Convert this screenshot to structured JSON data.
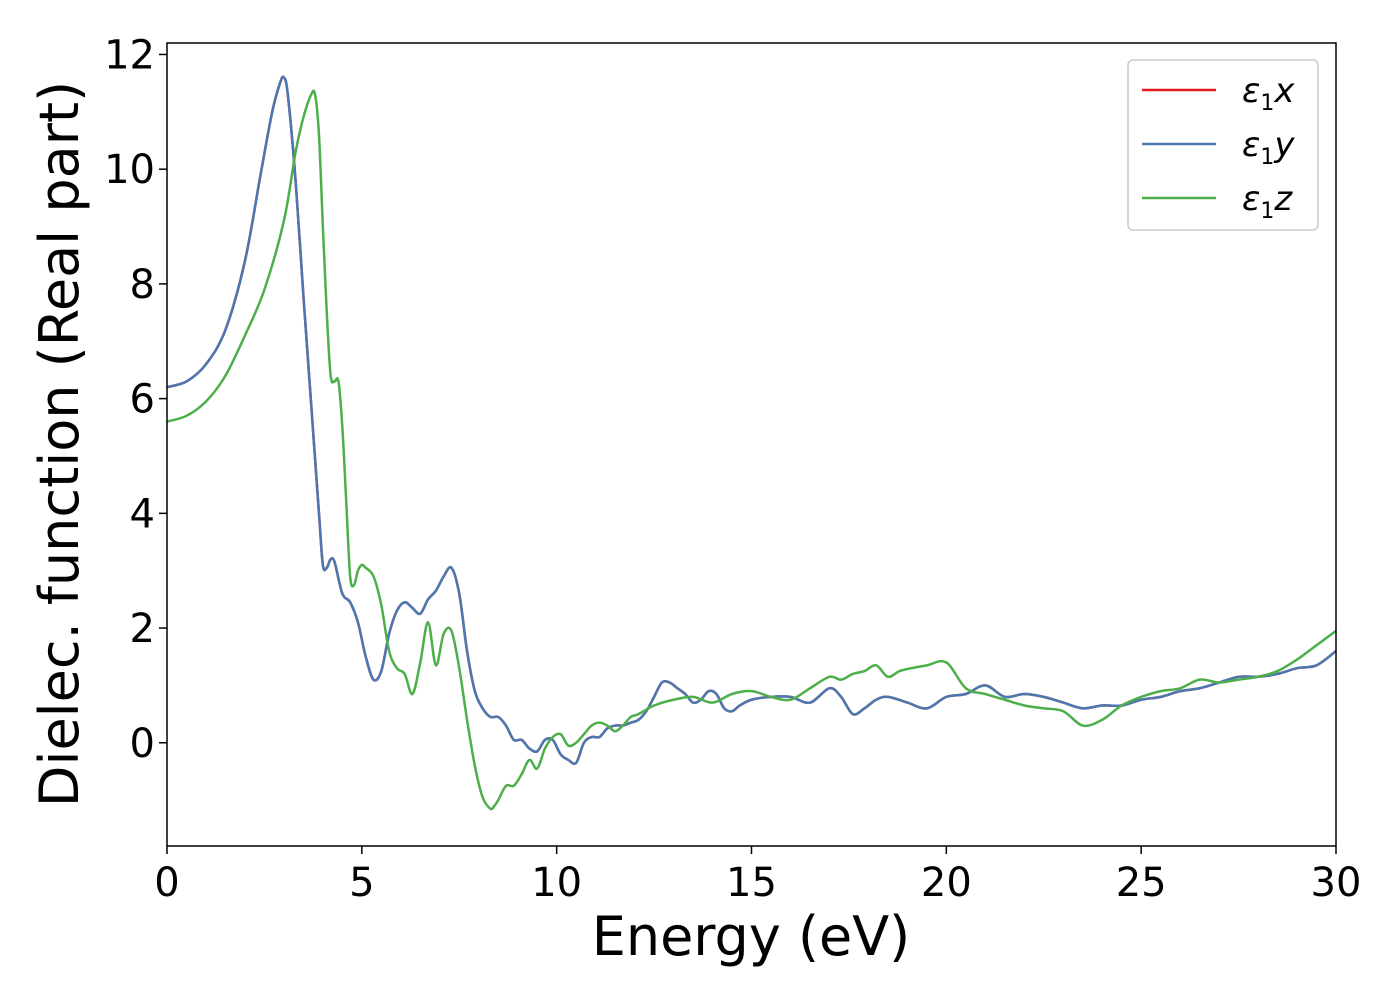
{
  "chart_data": {
    "type": "line",
    "xlabel": "Energy (eV)",
    "ylabel": "Dielec. function (Real part)",
    "xlim": [
      0,
      30
    ],
    "ylim": [
      -1.8,
      12.2
    ],
    "xticks": [
      "0",
      "5",
      "10",
      "15",
      "20",
      "25",
      "30"
    ],
    "yticks": [
      "0",
      "2",
      "4",
      "6",
      "8",
      "10",
      "12"
    ],
    "grid": false,
    "legend_position": "top-right",
    "series": [
      {
        "name": "ε1x",
        "legend_main": "ε",
        "legend_sub": "1",
        "legend_suffix": "x",
        "color": "#e41a1c",
        "x": [
          0,
          0.5,
          1.0,
          1.5,
          2.0,
          2.4,
          2.7,
          2.9,
          3.0,
          3.1,
          3.3,
          3.5,
          3.7,
          3.9,
          4.0,
          4.1,
          4.2,
          4.3,
          4.5,
          4.7,
          4.9,
          5.1,
          5.3,
          5.5,
          5.7,
          5.9,
          6.1,
          6.3,
          6.5,
          6.7,
          6.9,
          7.1,
          7.3,
          7.5,
          7.7,
          7.9,
          8.1,
          8.3,
          8.5,
          8.7,
          8.9,
          9.1,
          9.3,
          9.5,
          9.7,
          9.9,
          10.1,
          10.3,
          10.5,
          10.7,
          10.9,
          11.1,
          11.3,
          11.5,
          11.7,
          11.9,
          12.1,
          12.3,
          12.5,
          12.7,
          12.9,
          13.1,
          13.3,
          13.5,
          13.7,
          13.9,
          14.1,
          14.3,
          14.5,
          14.7,
          15.0,
          15.5,
          16.0,
          16.5,
          17.0,
          17.3,
          17.6,
          17.9,
          18.2,
          18.5,
          19.0,
          19.5,
          20.0,
          20.5,
          21.0,
          21.5,
          22.0,
          22.5,
          23.0,
          23.5,
          24.0,
          24.5,
          25.0,
          25.5,
          26.0,
          26.5,
          27.0,
          27.5,
          28.0,
          28.5,
          29.0,
          29.5,
          30.0
        ],
        "y": [
          6.2,
          6.3,
          6.6,
          7.2,
          8.4,
          9.9,
          11.0,
          11.5,
          11.6,
          11.3,
          9.8,
          7.8,
          5.9,
          4.0,
          3.1,
          3.05,
          3.2,
          3.15,
          2.6,
          2.45,
          2.1,
          1.5,
          1.1,
          1.25,
          1.9,
          2.3,
          2.45,
          2.35,
          2.25,
          2.5,
          2.65,
          2.9,
          3.05,
          2.6,
          1.6,
          0.9,
          0.6,
          0.45,
          0.45,
          0.3,
          0.05,
          0.05,
          -0.1,
          -0.15,
          0.05,
          0.05,
          -0.2,
          -0.3,
          -0.35,
          0.0,
          0.1,
          0.1,
          0.25,
          0.3,
          0.3,
          0.35,
          0.4,
          0.55,
          0.8,
          1.05,
          1.05,
          0.95,
          0.85,
          0.7,
          0.75,
          0.9,
          0.85,
          0.6,
          0.55,
          0.65,
          0.75,
          0.8,
          0.8,
          0.7,
          0.95,
          0.8,
          0.5,
          0.6,
          0.75,
          0.8,
          0.7,
          0.6,
          0.8,
          0.85,
          1.0,
          0.8,
          0.85,
          0.8,
          0.7,
          0.6,
          0.65,
          0.65,
          0.75,
          0.8,
          0.9,
          0.95,
          1.05,
          1.15,
          1.15,
          1.2,
          1.3,
          1.35,
          1.6
        ]
      },
      {
        "name": "ε1y",
        "legend_main": "ε",
        "legend_sub": "1",
        "legend_suffix": "y",
        "color": "#4a78b0",
        "x": [
          0,
          0.5,
          1.0,
          1.5,
          2.0,
          2.4,
          2.7,
          2.9,
          3.0,
          3.1,
          3.3,
          3.5,
          3.7,
          3.9,
          4.0,
          4.1,
          4.2,
          4.3,
          4.5,
          4.7,
          4.9,
          5.1,
          5.3,
          5.5,
          5.7,
          5.9,
          6.1,
          6.3,
          6.5,
          6.7,
          6.9,
          7.1,
          7.3,
          7.5,
          7.7,
          7.9,
          8.1,
          8.3,
          8.5,
          8.7,
          8.9,
          9.1,
          9.3,
          9.5,
          9.7,
          9.9,
          10.1,
          10.3,
          10.5,
          10.7,
          10.9,
          11.1,
          11.3,
          11.5,
          11.7,
          11.9,
          12.1,
          12.3,
          12.5,
          12.7,
          12.9,
          13.1,
          13.3,
          13.5,
          13.7,
          13.9,
          14.1,
          14.3,
          14.5,
          14.7,
          15.0,
          15.5,
          16.0,
          16.5,
          17.0,
          17.3,
          17.6,
          17.9,
          18.2,
          18.5,
          19.0,
          19.5,
          20.0,
          20.5,
          21.0,
          21.5,
          22.0,
          22.5,
          23.0,
          23.5,
          24.0,
          24.5,
          25.0,
          25.5,
          26.0,
          26.5,
          27.0,
          27.5,
          28.0,
          28.5,
          29.0,
          29.5,
          30.0
        ],
        "y": [
          6.2,
          6.3,
          6.6,
          7.2,
          8.4,
          9.9,
          11.0,
          11.5,
          11.6,
          11.3,
          9.8,
          7.8,
          5.9,
          4.0,
          3.1,
          3.05,
          3.2,
          3.15,
          2.6,
          2.45,
          2.1,
          1.5,
          1.1,
          1.25,
          1.9,
          2.3,
          2.45,
          2.35,
          2.25,
          2.5,
          2.65,
          2.9,
          3.05,
          2.6,
          1.6,
          0.9,
          0.6,
          0.45,
          0.45,
          0.3,
          0.05,
          0.05,
          -0.1,
          -0.15,
          0.05,
          0.05,
          -0.2,
          -0.3,
          -0.35,
          0.0,
          0.1,
          0.1,
          0.25,
          0.3,
          0.3,
          0.35,
          0.4,
          0.55,
          0.8,
          1.05,
          1.05,
          0.95,
          0.85,
          0.7,
          0.75,
          0.9,
          0.85,
          0.6,
          0.55,
          0.65,
          0.75,
          0.8,
          0.8,
          0.7,
          0.95,
          0.8,
          0.5,
          0.6,
          0.75,
          0.8,
          0.7,
          0.6,
          0.8,
          0.85,
          1.0,
          0.8,
          0.85,
          0.8,
          0.7,
          0.6,
          0.65,
          0.65,
          0.75,
          0.8,
          0.9,
          0.95,
          1.05,
          1.15,
          1.15,
          1.2,
          1.3,
          1.35,
          1.6
        ]
      },
      {
        "name": "ε1z",
        "legend_main": "ε",
        "legend_sub": "1",
        "legend_suffix": "z",
        "color": "#4daf4a",
        "x": [
          0,
          0.5,
          1.0,
          1.5,
          2.0,
          2.5,
          3.0,
          3.3,
          3.5,
          3.7,
          3.8,
          3.9,
          4.0,
          4.1,
          4.2,
          4.3,
          4.4,
          4.5,
          4.6,
          4.7,
          4.8,
          4.9,
          5.0,
          5.1,
          5.3,
          5.5,
          5.7,
          5.9,
          6.1,
          6.3,
          6.5,
          6.7,
          6.9,
          7.1,
          7.3,
          7.5,
          7.7,
          7.9,
          8.1,
          8.3,
          8.4,
          8.5,
          8.7,
          8.9,
          9.1,
          9.3,
          9.5,
          9.7,
          9.9,
          10.1,
          10.3,
          10.5,
          10.7,
          10.9,
          11.1,
          11.3,
          11.5,
          11.7,
          11.9,
          12.1,
          12.5,
          13.0,
          13.5,
          14.0,
          14.5,
          15.0,
          15.5,
          16.0,
          16.5,
          17.0,
          17.3,
          17.6,
          17.9,
          18.2,
          18.5,
          18.8,
          19.1,
          19.5,
          20.0,
          20.5,
          21.0,
          21.5,
          22.0,
          22.5,
          23.0,
          23.5,
          24.0,
          24.5,
          25.0,
          25.5,
          26.0,
          26.5,
          27.0,
          27.5,
          28.0,
          28.5,
          29.0,
          29.5,
          30.0
        ],
        "y": [
          5.6,
          5.7,
          5.95,
          6.4,
          7.1,
          7.9,
          9.1,
          10.3,
          10.9,
          11.3,
          11.3,
          10.6,
          9.0,
          7.5,
          6.4,
          6.3,
          6.3,
          5.5,
          4.2,
          2.9,
          2.75,
          3.0,
          3.1,
          3.05,
          2.9,
          2.4,
          1.6,
          1.3,
          1.2,
          0.85,
          1.4,
          2.1,
          1.35,
          1.9,
          1.95,
          1.3,
          0.4,
          -0.4,
          -0.95,
          -1.15,
          -1.1,
          -1.0,
          -0.75,
          -0.75,
          -0.55,
          -0.3,
          -0.45,
          -0.1,
          0.1,
          0.15,
          -0.05,
          0.0,
          0.15,
          0.3,
          0.35,
          0.3,
          0.2,
          0.3,
          0.45,
          0.5,
          0.65,
          0.75,
          0.8,
          0.7,
          0.85,
          0.9,
          0.8,
          0.75,
          0.95,
          1.15,
          1.1,
          1.2,
          1.25,
          1.35,
          1.15,
          1.25,
          1.3,
          1.35,
          1.4,
          0.95,
          0.85,
          0.75,
          0.65,
          0.6,
          0.55,
          0.3,
          0.4,
          0.65,
          0.8,
          0.9,
          0.95,
          1.1,
          1.05,
          1.1,
          1.15,
          1.25,
          1.45,
          1.7,
          1.95
        ]
      }
    ]
  }
}
